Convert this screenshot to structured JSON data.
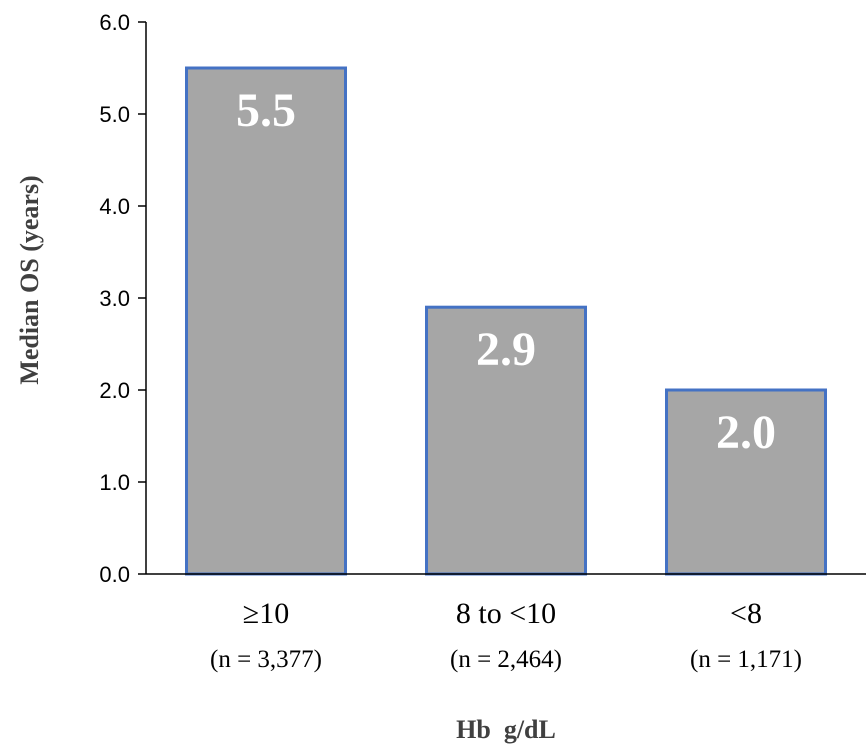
{
  "chart_data": {
    "type": "bar",
    "categories": [
      "≥10",
      "8 to <10",
      "<8"
    ],
    "category_sublabels": [
      "(n = 3,377)",
      "(n = 2,464)",
      "(n = 1,171)"
    ],
    "values": [
      5.5,
      2.9,
      2.0
    ],
    "data_labels": [
      "5.5",
      "2.9",
      "2.0"
    ],
    "title": "",
    "xlabel": "Hb  g/dL",
    "ylabel": "Median OS (years)",
    "ylim": [
      0,
      6
    ],
    "yticks": [
      0,
      1,
      2,
      3,
      4,
      5,
      6
    ],
    "ytick_labels": [
      "0.0",
      "1.0",
      "2.0",
      "3.0",
      "4.0",
      "5.0",
      "6.0"
    ],
    "grid": false,
    "legend": "none",
    "colors": {
      "bar_fill": "#a6a6a6",
      "bar_stroke": "#4472c4",
      "axis": "#000000",
      "data_label": "#ffffff",
      "axis_title": "#404040"
    }
  }
}
